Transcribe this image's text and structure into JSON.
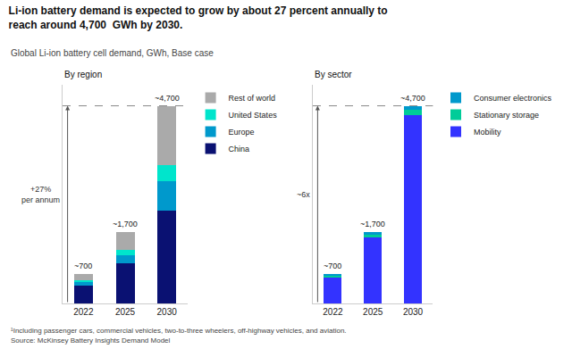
{
  "title": "Li-ion battery demand is expected to grow by about 27 percent annually to\nreach around 4,700  GWh by 2030.",
  "subtitle": "Global Li-ion battery cell demand, GWh, Base case",
  "footnotes": [
    "¹Including passenger cars, commercial vehicles, two-to-three wheelers, off-highway vehicles, and aviation.",
    "Source: McKinsey Battery Insights Demand Model"
  ],
  "chart_data": [
    {
      "type": "bar",
      "title": "By region",
      "stacked": true,
      "categories": [
        "2022",
        "2025",
        "2030"
      ],
      "series": [
        {
          "name": "China",
          "color": "#0a1172",
          "values": [
            430,
            950,
            2200
          ]
        },
        {
          "name": "Europe",
          "color": "#0099cc",
          "values": [
            80,
            200,
            700
          ]
        },
        {
          "name": "United States",
          "color": "#00e5cc",
          "values": [
            50,
            120,
            400
          ]
        },
        {
          "name": "Rest of world",
          "color": "#aaaaaa",
          "values": [
            140,
            430,
            1400
          ]
        }
      ],
      "totals": [
        700,
        1700,
        4700
      ],
      "total_labels": [
        "~700",
        "~1,700",
        "~4,700"
      ],
      "ylim": [
        0,
        5200
      ],
      "tick_labels": "x",
      "grid": false,
      "legend": "right",
      "reference_line": {
        "y": 4700,
        "line_style": "dashed"
      },
      "annotation": "+27%\nper annum"
    },
    {
      "type": "bar",
      "title": "By sector",
      "stacked": true,
      "categories": [
        "2022",
        "2025",
        "2030"
      ],
      "series": [
        {
          "name": "Mobility",
          "color": "#3333ff",
          "values": [
            620,
            1580,
            4480
          ]
        },
        {
          "name": "Stationary storage",
          "color": "#00cc99",
          "values": [
            30,
            60,
            130
          ]
        },
        {
          "name": "Consumer electronics",
          "color": "#0099cc",
          "values": [
            50,
            60,
            90
          ]
        }
      ],
      "totals": [
        700,
        1700,
        4700
      ],
      "total_labels": [
        "~700",
        "~1,700",
        "~4,700"
      ],
      "ylim": [
        0,
        5200
      ],
      "tick_labels": "x",
      "grid": false,
      "legend": "right",
      "reference_line": {
        "y": 4700,
        "line_style": "dashed"
      },
      "annotation": "~6x"
    }
  ]
}
